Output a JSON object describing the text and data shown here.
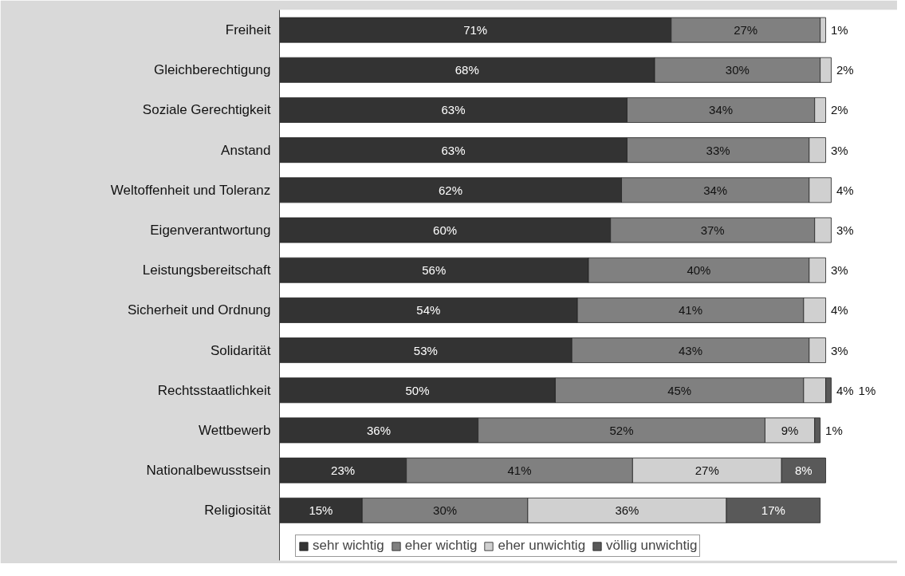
{
  "chart_data": {
    "type": "bar",
    "orientation": "horizontal",
    "stacked": true,
    "legend": "bottom",
    "grid": false,
    "categories": [
      "Freiheit",
      "Gleichberechtigung",
      "Soziale Gerechtigkeit",
      "Anstand",
      "Weltoffenheit und Toleranz",
      "Eigenverantwortung",
      "Leistungsbereitschaft",
      "Sicherheit und Ordnung",
      "Solidarität",
      "Rechtsstaatlichkeit",
      "Wettbewerb",
      "Nationalbewusstsein",
      "Religiosität"
    ],
    "series": [
      {
        "name": "sehr wichtig",
        "color": "#333333",
        "values": [
          71,
          68,
          63,
          63,
          62,
          60,
          56,
          54,
          53,
          50,
          36,
          23,
          15
        ],
        "value_labels": [
          "71%",
          "68%",
          "63%",
          "63%",
          "62%",
          "60%",
          "56%",
          "54%",
          "53%",
          "50%",
          "36%",
          "23%",
          "15%"
        ]
      },
      {
        "name": "eher wichtig",
        "color": "#808080",
        "values": [
          27,
          30,
          34,
          33,
          34,
          37,
          40,
          41,
          43,
          45,
          52,
          41,
          30
        ],
        "value_labels": [
          "27%",
          "30%",
          "34%",
          "33%",
          "34%",
          "37%",
          "40%",
          "41%",
          "43%",
          "45%",
          "52%",
          "41%",
          "30%"
        ]
      },
      {
        "name": "eher unwichtig",
        "color": "#d0d0d0",
        "values": [
          1,
          2,
          2,
          3,
          4,
          3,
          3,
          4,
          3,
          4,
          9,
          27,
          36
        ],
        "value_labels": [
          "1%",
          "2%",
          "2%",
          "3%",
          "4%",
          "3%",
          "3%",
          "4%",
          "3%",
          "4%",
          "9%",
          "27%",
          "36%"
        ]
      },
      {
        "name": "völlig unwichtig",
        "color": "#595959",
        "values": [
          null,
          null,
          null,
          null,
          null,
          null,
          null,
          null,
          null,
          1,
          1,
          8,
          17
        ],
        "value_labels": [
          null,
          null,
          null,
          null,
          null,
          null,
          null,
          null,
          null,
          "1%",
          "1%",
          "8%",
          "17%"
        ]
      }
    ]
  }
}
